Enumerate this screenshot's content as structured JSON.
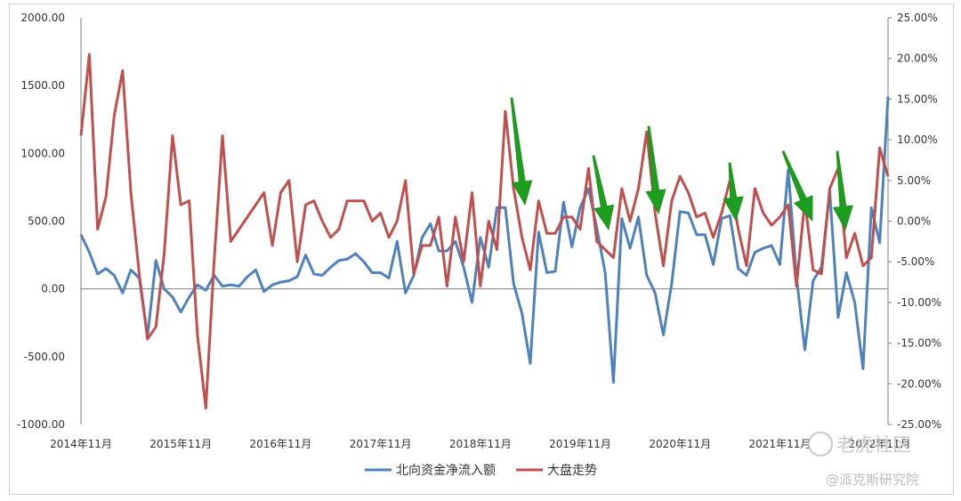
{
  "chart_data": {
    "type": "line",
    "x_tick_labels": [
      "2014年11月",
      "2015年11月",
      "2016年11月",
      "2017年11月",
      "2018年11月",
      "2019年11月",
      "2020年11月",
      "2021年11月",
      "2022年11月"
    ],
    "y_left": {
      "ylim": [
        -1000,
        2000
      ],
      "tick_labels": [
        "2000.00",
        "1500.00",
        "1000.00",
        "500.00",
        "0.00",
        "-500.00",
        "-1000.00"
      ]
    },
    "y_right": {
      "ylim": [
        -25,
        25
      ],
      "tick_labels": [
        "25.00%",
        "20.00%",
        "15.00%",
        "10.00%",
        "5.00%",
        "0.00%",
        "-5.00%",
        "-10.00%",
        "-15.00%",
        "-20.00%",
        "-25.00%"
      ]
    },
    "series": [
      {
        "name": "北向资金净流入额",
        "axis": "left",
        "color": "#4f81bd",
        "values": [
          400,
          270,
          110,
          150,
          100,
          -30,
          140,
          80,
          -350,
          210,
          0,
          -60,
          -170,
          -60,
          30,
          -10,
          100,
          20,
          30,
          20,
          90,
          140,
          -20,
          30,
          50,
          60,
          90,
          250,
          110,
          100,
          160,
          210,
          220,
          260,
          200,
          120,
          120,
          80,
          350,
          -30,
          100,
          380,
          480,
          280,
          280,
          350,
          160,
          -100,
          380,
          160,
          600,
          600,
          40,
          -180,
          -550,
          420,
          120,
          130,
          640,
          310,
          600,
          740,
          450,
          120,
          -690,
          520,
          300,
          530,
          100,
          -30,
          -340,
          40,
          570,
          560,
          400,
          400,
          180,
          520,
          540,
          150,
          100,
          270,
          300,
          320,
          180,
          880,
          90,
          -450,
          60,
          160,
          720,
          -210,
          120,
          -100,
          -590,
          600,
          340,
          1420
        ]
      },
      {
        "name": "大盘走势",
        "axis": "right",
        "color": "#c0504d",
        "values": [
          10.5,
          20.5,
          -1,
          3,
          13,
          18.5,
          3.5,
          -6.5,
          -14.5,
          -13,
          -4,
          10.5,
          2,
          2.5,
          -14,
          -23,
          -5,
          10.5,
          -2.5,
          -1,
          0.5,
          2,
          3.5,
          -3,
          3.5,
          5,
          -5,
          2,
          2.5,
          0,
          -2,
          -1,
          2.5,
          2.5,
          2.5,
          0,
          1,
          -2,
          0,
          5,
          -6.5,
          -3,
          -3,
          0.5,
          -8,
          0.5,
          -5,
          3.5,
          -8,
          0,
          -3.5,
          13.5,
          4,
          -2,
          -6,
          2.5,
          -1.5,
          -1.5,
          0.5,
          0.5,
          -1,
          6.5,
          -2.5,
          -3.5,
          -4.5,
          4,
          0,
          4,
          11,
          1,
          -5.5,
          2.5,
          5.5,
          3.5,
          0.5,
          1,
          -2,
          1,
          5,
          -1,
          -5.5,
          4,
          1,
          -0.5,
          0.5,
          2,
          -8,
          2.5,
          -6,
          -6.5,
          4,
          6.5,
          -4.5,
          -1.5,
          -5.5,
          -4.5,
          9,
          5.5
        ]
      }
    ],
    "annotations": "green downward arrows mark drops in net northbound inflow",
    "grid": false,
    "legend_position": "bottom"
  },
  "watermark": {
    "main": "老虎社区",
    "sub": "@派克斯研究院"
  }
}
